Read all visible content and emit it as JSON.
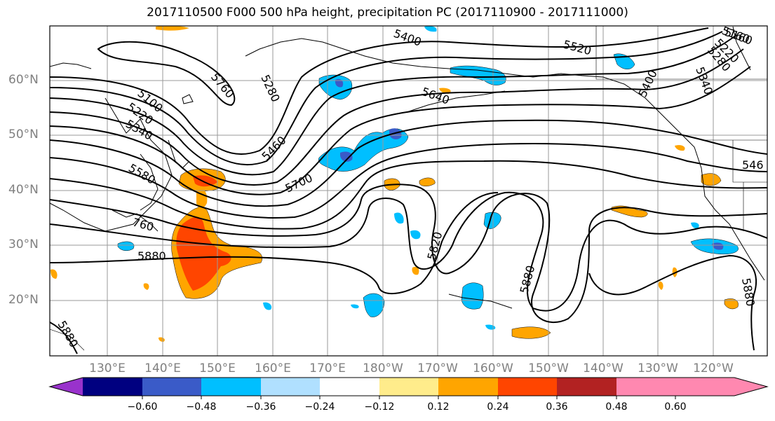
{
  "title": "2017110500 F000 500 hPa height, precipitation PC (2017110900 - 2017111000)",
  "axes": {
    "lat_labels": [
      "60°N",
      "50°N",
      "40°N",
      "30°N",
      "20°N"
    ],
    "lon_labels": [
      "130°E",
      "140°E",
      "150°E",
      "160°E",
      "170°E",
      "180°W",
      "170°W",
      "160°W",
      "150°W",
      "140°W",
      "130°W",
      "120°W"
    ],
    "grid": true
  },
  "contour_labels": [
    "5100",
    "5220",
    "5340",
    "5580",
    "5760",
    "5880",
    "5700",
    "5460",
    "5280",
    "5160",
    "5400",
    "5520",
    "5640",
    "5820",
    "5880",
    "5400",
    "5340",
    "5280",
    "5220",
    "5160",
    "546",
    "5880",
    "760",
    "5880"
  ],
  "colorbar": {
    "ticks": [
      "−0.60",
      "−0.48",
      "−0.36",
      "−0.24",
      "−0.12",
      "0.12",
      "0.24",
      "0.36",
      "0.48",
      "0.60"
    ],
    "colors": [
      "#9932cc",
      "#000080",
      "#3a5bc8",
      "#00bfff",
      "#b0e0ff",
      "#ffffff",
      "#ffec8b",
      "#ffa500",
      "#ff4500",
      "#b22222",
      "#ff88b0"
    ]
  }
}
